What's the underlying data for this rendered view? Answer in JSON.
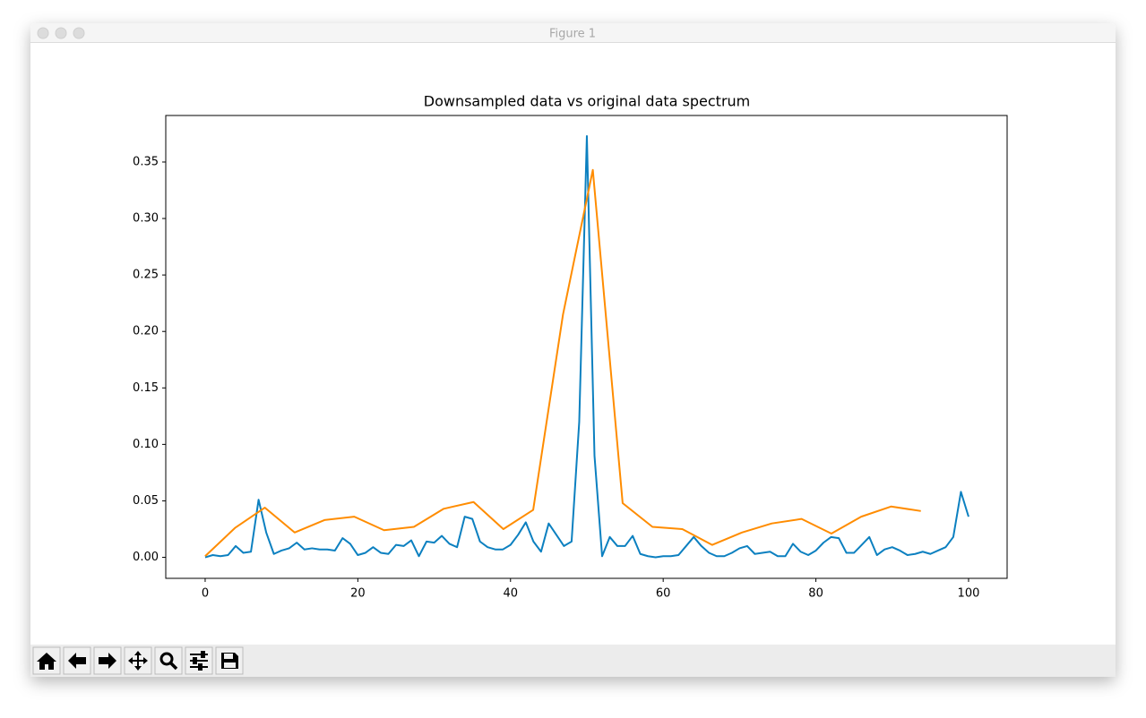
{
  "window": {
    "title": "Figure 1"
  },
  "chart_data": {
    "type": "line",
    "title": "Downsampled data vs original data spectrum",
    "xlim": [
      -5.16,
      105.05
    ],
    "ylim": [
      -0.0186,
      0.3912
    ],
    "xticks": [
      0,
      20,
      40,
      60,
      80,
      100
    ],
    "yticks": [
      {
        "value": 0,
        "label": "0.00"
      },
      0.05,
      {
        "value": 0.1,
        "label": "0.10"
      },
      0.15,
      {
        "value": 0.2,
        "label": "0.20"
      },
      0.25,
      {
        "value": 0.3,
        "label": "0.30"
      },
      0.35
    ],
    "grid": false,
    "series": [
      {
        "color": "#0c80c0",
        "x": [
          0,
          1,
          2,
          3,
          4,
          5,
          6,
          7,
          8,
          9,
          10,
          11,
          12,
          13,
          14,
          15,
          16,
          17,
          18,
          19,
          20,
          21,
          22,
          23,
          24,
          25,
          26,
          27,
          28,
          29,
          30,
          31,
          32,
          33,
          34,
          35,
          36,
          37,
          38,
          39,
          40,
          41,
          42,
          43,
          44,
          45,
          46,
          47,
          48,
          49,
          50,
          51,
          52,
          53,
          54,
          55,
          56,
          57,
          58,
          59,
          60,
          61,
          62,
          63,
          64,
          65,
          66,
          67,
          68,
          69,
          70,
          71,
          72,
          73,
          74,
          75,
          76,
          77,
          78,
          79,
          80,
          81,
          82,
          83,
          84,
          85,
          86,
          87,
          88,
          89,
          90,
          91,
          92,
          93,
          94,
          95,
          96,
          97,
          98,
          99,
          100
        ],
        "values": [
          0.0,
          0.002,
          0.001,
          0.002,
          0.01,
          0.004,
          0.005,
          0.051,
          0.022,
          0.003,
          0.006,
          0.008,
          0.013,
          0.007,
          0.008,
          0.007,
          0.007,
          0.006,
          0.017,
          0.012,
          0.002,
          0.004,
          0.009,
          0.004,
          0.003,
          0.011,
          0.01,
          0.015,
          0.001,
          0.014,
          0.013,
          0.019,
          0.012,
          0.009,
          0.036,
          0.034,
          0.014,
          0.009,
          0.007,
          0.007,
          0.011,
          0.02,
          0.031,
          0.014,
          0.005,
          0.03,
          0.02,
          0.01,
          0.014,
          0.12,
          0.373,
          0.09,
          0.001,
          0.018,
          0.01,
          0.01,
          0.019,
          0.003,
          0.001,
          0.0,
          0.001,
          0.001,
          0.002,
          0.01,
          0.018,
          0.01,
          0.004,
          0.001,
          0.001,
          0.004,
          0.008,
          0.01,
          0.003,
          0.004,
          0.005,
          0.001,
          0.001,
          0.012,
          0.005,
          0.002,
          0.006,
          0.013,
          0.018,
          0.017,
          0.004,
          0.004,
          0.011,
          0.018,
          0.002,
          0.007,
          0.009,
          0.006,
          0.002,
          0.003,
          0.005,
          0.003,
          0.006,
          0.009,
          0.018,
          0.058,
          0.036
        ]
      },
      {
        "color": "#ff8c00",
        "x": [
          0,
          3.90625,
          7.8125,
          11.71875,
          15.625,
          19.53125,
          23.4375,
          27.34375,
          31.25,
          35.15625,
          39.0625,
          42.96875,
          46.875,
          50.78125,
          54.6875,
          58.59375,
          62.5,
          66.40625,
          70.3125,
          74.21875,
          78.125,
          82.03125,
          85.9375,
          89.84375,
          93.75
        ],
        "values": [
          0.001,
          0.026,
          0.044,
          0.022,
          0.033,
          0.036,
          0.024,
          0.027,
          0.043,
          0.049,
          0.025,
          0.042,
          0.215,
          0.343,
          0.048,
          0.027,
          0.025,
          0.011,
          0.022,
          0.03,
          0.034,
          0.021,
          0.036,
          0.045,
          0.041
        ]
      }
    ]
  }
}
